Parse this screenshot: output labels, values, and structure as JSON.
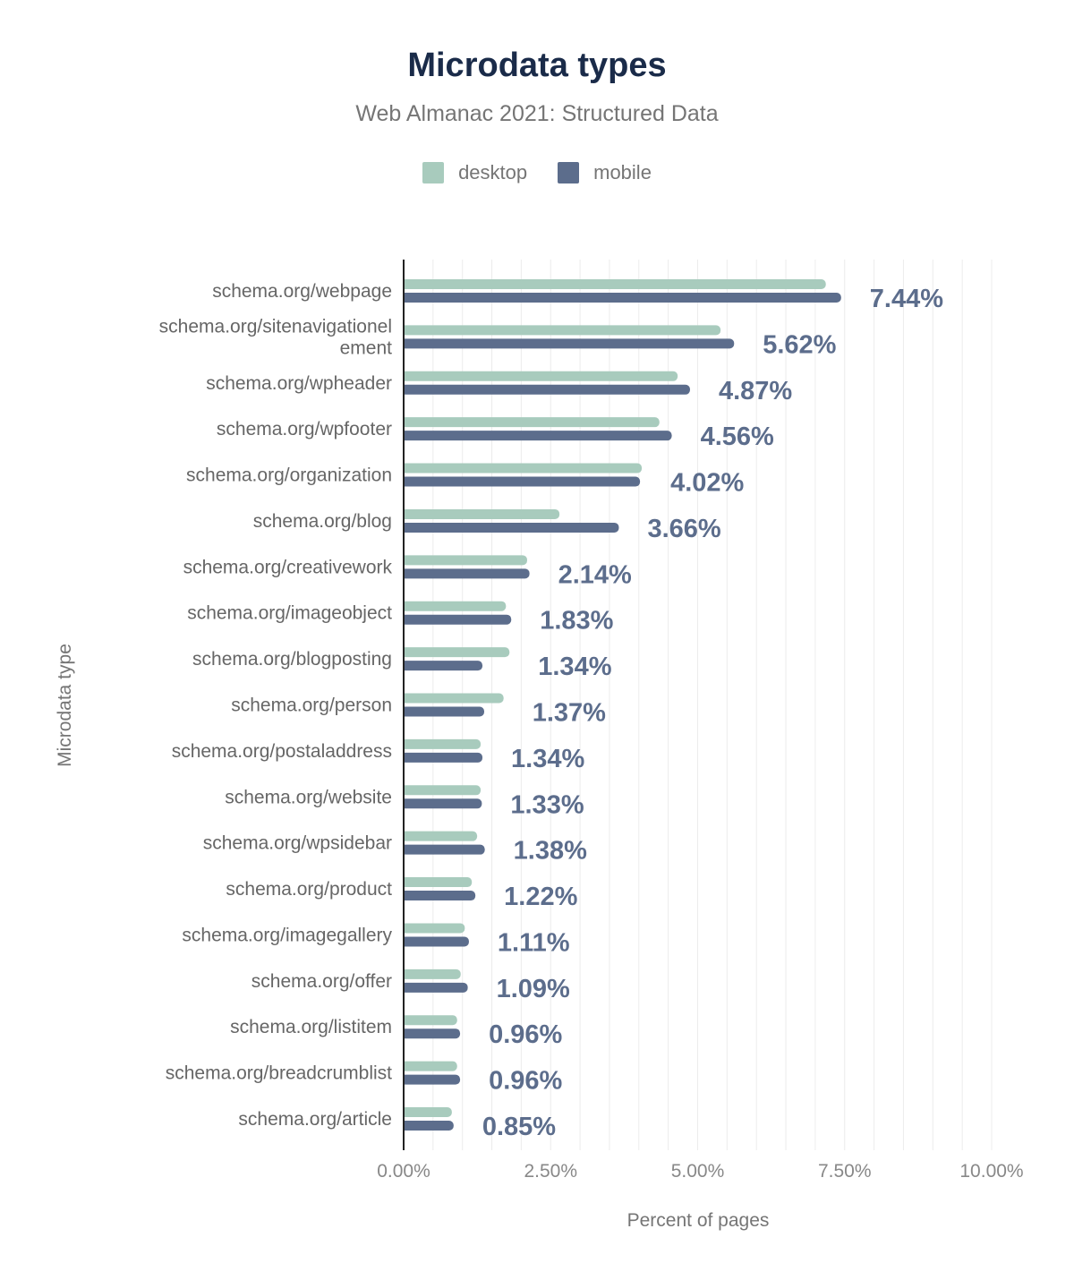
{
  "chart_data": {
    "type": "bar",
    "orientation": "horizontal",
    "title": "Microdata types",
    "subtitle": "Web Almanac 2021: Structured Data",
    "xlabel": "Percent of pages",
    "ylabel": "Microdata type",
    "xlim": [
      0,
      10
    ],
    "xticks": [
      "0.00%",
      "2.50%",
      "5.00%",
      "7.50%",
      "10.00%"
    ],
    "grid": true,
    "legend_position": "top",
    "categories": [
      "schema.org/webpage",
      "schema.org/sitenavigationelement",
      "schema.org/wpheader",
      "schema.org/wpfooter",
      "schema.org/organization",
      "schema.org/blog",
      "schema.org/creativework",
      "schema.org/imageobject",
      "schema.org/blogposting",
      "schema.org/person",
      "schema.org/postaladdress",
      "schema.org/website",
      "schema.org/wpsidebar",
      "schema.org/product",
      "schema.org/imagegallery",
      "schema.org/offer",
      "schema.org/listitem",
      "schema.org/breadcrumblist",
      "schema.org/article"
    ],
    "series": [
      {
        "name": "desktop",
        "color": "#a8cbbd",
        "values": [
          7.18,
          5.39,
          4.66,
          4.35,
          4.05,
          2.65,
          2.1,
          1.74,
          1.8,
          1.7,
          1.31,
          1.31,
          1.25,
          1.16,
          1.04,
          0.97,
          0.91,
          0.91,
          0.82
        ]
      },
      {
        "name": "mobile",
        "color": "#5c6d8c",
        "values": [
          7.44,
          5.62,
          4.87,
          4.56,
          4.02,
          3.66,
          2.14,
          1.83,
          1.34,
          1.37,
          1.34,
          1.33,
          1.38,
          1.22,
          1.11,
          1.09,
          0.96,
          0.96,
          0.85
        ],
        "data_labels": [
          "7.44%",
          "5.62%",
          "4.87%",
          "4.56%",
          "4.02%",
          "3.66%",
          "2.14%",
          "1.83%",
          "1.34%",
          "1.37%",
          "1.34%",
          "1.33%",
          "1.38%",
          "1.22%",
          "1.11%",
          "1.09%",
          "0.96%",
          "0.96%",
          "0.85%"
        ]
      }
    ]
  }
}
